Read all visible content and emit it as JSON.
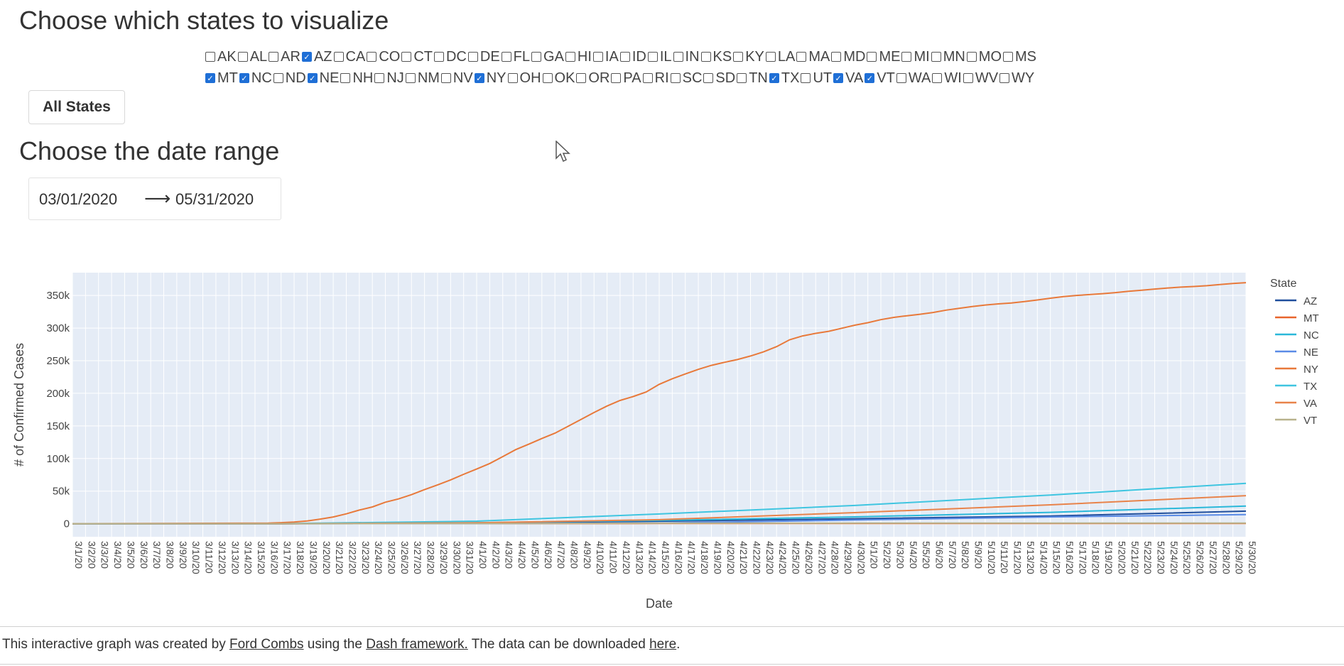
{
  "headings": {
    "states": "Choose which states to visualize",
    "dates": "Choose the date range"
  },
  "states_row1": [
    {
      "code": "AK",
      "checked": false
    },
    {
      "code": "AL",
      "checked": false
    },
    {
      "code": "AR",
      "checked": false
    },
    {
      "code": "AZ",
      "checked": true
    },
    {
      "code": "CA",
      "checked": false
    },
    {
      "code": "CO",
      "checked": false
    },
    {
      "code": "CT",
      "checked": false
    },
    {
      "code": "DC",
      "checked": false
    },
    {
      "code": "DE",
      "checked": false
    },
    {
      "code": "FL",
      "checked": false
    },
    {
      "code": "GA",
      "checked": false
    },
    {
      "code": "HI",
      "checked": false
    },
    {
      "code": "IA",
      "checked": false
    },
    {
      "code": "ID",
      "checked": false
    },
    {
      "code": "IL",
      "checked": false
    },
    {
      "code": "IN",
      "checked": false
    },
    {
      "code": "KS",
      "checked": false
    },
    {
      "code": "KY",
      "checked": false
    },
    {
      "code": "LA",
      "checked": false
    },
    {
      "code": "MA",
      "checked": false
    },
    {
      "code": "MD",
      "checked": false
    },
    {
      "code": "ME",
      "checked": false
    },
    {
      "code": "MI",
      "checked": false
    },
    {
      "code": "MN",
      "checked": false
    },
    {
      "code": "MO",
      "checked": false
    },
    {
      "code": "MS",
      "checked": false
    }
  ],
  "states_row2": [
    {
      "code": "MT",
      "checked": true
    },
    {
      "code": "NC",
      "checked": true
    },
    {
      "code": "ND",
      "checked": false
    },
    {
      "code": "NE",
      "checked": true
    },
    {
      "code": "NH",
      "checked": false
    },
    {
      "code": "NJ",
      "checked": false
    },
    {
      "code": "NM",
      "checked": false
    },
    {
      "code": "NV",
      "checked": false
    },
    {
      "code": "NY",
      "checked": true
    },
    {
      "code": "OH",
      "checked": false
    },
    {
      "code": "OK",
      "checked": false
    },
    {
      "code": "OR",
      "checked": false
    },
    {
      "code": "PA",
      "checked": false
    },
    {
      "code": "RI",
      "checked": false
    },
    {
      "code": "SC",
      "checked": false
    },
    {
      "code": "SD",
      "checked": false
    },
    {
      "code": "TN",
      "checked": false
    },
    {
      "code": "TX",
      "checked": true
    },
    {
      "code": "UT",
      "checked": false
    },
    {
      "code": "VA",
      "checked": true
    },
    {
      "code": "VT",
      "checked": true
    },
    {
      "code": "WA",
      "checked": false
    },
    {
      "code": "WI",
      "checked": false
    },
    {
      "code": "WV",
      "checked": false
    },
    {
      "code": "WY",
      "checked": false
    }
  ],
  "buttons": {
    "all_states": "All States"
  },
  "date_range": {
    "start": "03/01/2020",
    "end": "05/31/2020",
    "arrow": "⟶"
  },
  "footer": {
    "prefix": "This interactive graph was created by ",
    "author": "Ford Combs",
    "middle": " using the ",
    "framework": "Dash framework.",
    "mid2": " The data can be downloaded ",
    "link": "here",
    "suffix": "."
  },
  "colors": {
    "plot_bg": "#e5ecf6",
    "grid": "#ffffff",
    "checkbox_checked": "#1f6fd6"
  },
  "chart_data": {
    "type": "line",
    "xlabel": "Date",
    "ylabel": "# of Confirmed Cases",
    "legend_title": "State",
    "legend_position": "right",
    "grid": true,
    "x_start": "3/1/20",
    "x_end": "5/30/20",
    "x": [
      "3/1/20",
      "3/2/20",
      "3/3/20",
      "3/4/20",
      "3/5/20",
      "3/6/20",
      "3/7/20",
      "3/8/20",
      "3/9/20",
      "3/10/20",
      "3/11/20",
      "3/12/20",
      "3/13/20",
      "3/14/20",
      "3/15/20",
      "3/16/20",
      "3/17/20",
      "3/18/20",
      "3/19/20",
      "3/20/20",
      "3/21/20",
      "3/22/20",
      "3/23/20",
      "3/24/20",
      "3/25/20",
      "3/26/20",
      "3/27/20",
      "3/28/20",
      "3/29/20",
      "3/30/20",
      "3/31/20",
      "4/1/20",
      "4/2/20",
      "4/3/20",
      "4/4/20",
      "4/5/20",
      "4/6/20",
      "4/7/20",
      "4/8/20",
      "4/9/20",
      "4/10/20",
      "4/11/20",
      "4/12/20",
      "4/13/20",
      "4/14/20",
      "4/15/20",
      "4/16/20",
      "4/17/20",
      "4/18/20",
      "4/19/20",
      "4/20/20",
      "4/21/20",
      "4/22/20",
      "4/23/20",
      "4/24/20",
      "4/25/20",
      "4/26/20",
      "4/27/20",
      "4/28/20",
      "4/29/20",
      "4/30/20",
      "5/1/20",
      "5/2/20",
      "5/3/20",
      "5/4/20",
      "5/5/20",
      "5/6/20",
      "5/7/20",
      "5/8/20",
      "5/9/20",
      "5/10/20",
      "5/11/20",
      "5/12/20",
      "5/13/20",
      "5/14/20",
      "5/15/20",
      "5/16/20",
      "5/17/20",
      "5/18/20",
      "5/19/20",
      "5/20/20",
      "5/21/20",
      "5/22/20",
      "5/23/20",
      "5/24/20",
      "5/25/20",
      "5/26/20",
      "5/27/20",
      "5/28/20",
      "5/29/20",
      "5/30/20"
    ],
    "ylim": [
      -20000,
      385000
    ],
    "yticks": [
      0,
      50000,
      100000,
      150000,
      200000,
      250000,
      300000,
      350000
    ],
    "ytick_labels": [
      "0",
      "50k",
      "100k",
      "150k",
      "200k",
      "250k",
      "300k",
      "350k"
    ],
    "series": [
      {
        "name": "AZ",
        "color": "#1f4e9c",
        "start": "3/1/20",
        "values": [
          [
            0,
            1
          ],
          [
            16,
            18
          ],
          [
            31,
            1300
          ],
          [
            45,
            3800
          ],
          [
            60,
            7600
          ],
          [
            75,
            11800
          ],
          [
            90,
            19300
          ]
        ]
      },
      {
        "name": "MT",
        "color": "#e8642b",
        "start": "3/1/20",
        "values": [
          [
            0,
            0
          ],
          [
            16,
            10
          ],
          [
            31,
            220
          ],
          [
            45,
            400
          ],
          [
            60,
            450
          ],
          [
            75,
            460
          ],
          [
            90,
            490
          ]
        ]
      },
      {
        "name": "NC",
        "color": "#2ab8d9",
        "start": "3/1/20",
        "values": [
          [
            0,
            0
          ],
          [
            16,
            40
          ],
          [
            31,
            1600
          ],
          [
            45,
            5100
          ],
          [
            60,
            10500
          ],
          [
            75,
            17500
          ],
          [
            90,
            27000
          ]
        ]
      },
      {
        "name": "NE",
        "color": "#5a8be6",
        "start": "3/1/20",
        "values": [
          [
            0,
            0
          ],
          [
            16,
            20
          ],
          [
            31,
            200
          ],
          [
            45,
            1000
          ],
          [
            60,
            5700
          ],
          [
            75,
            10400
          ],
          [
            90,
            14000
          ]
        ]
      },
      {
        "name": "NY",
        "color": "#e8793a",
        "start": "3/1/20",
        "values": [
          [
            0,
            1
          ],
          [
            15,
            950
          ],
          [
            16,
            1700
          ],
          [
            17,
            2500
          ],
          [
            18,
            4200
          ],
          [
            19,
            7100
          ],
          [
            20,
            10400
          ],
          [
            21,
            15200
          ],
          [
            22,
            20900
          ],
          [
            23,
            25700
          ],
          [
            24,
            33000
          ],
          [
            25,
            38000
          ],
          [
            26,
            44600
          ],
          [
            27,
            52300
          ],
          [
            28,
            59600
          ],
          [
            29,
            67200
          ],
          [
            30,
            75800
          ],
          [
            31,
            83900
          ],
          [
            32,
            92400
          ],
          [
            33,
            102900
          ],
          [
            34,
            113700
          ],
          [
            35,
            122000
          ],
          [
            36,
            130700
          ],
          [
            37,
            138800
          ],
          [
            38,
            149300
          ],
          [
            39,
            159900
          ],
          [
            40,
            170500
          ],
          [
            41,
            180500
          ],
          [
            42,
            189000
          ],
          [
            43,
            195000
          ],
          [
            44,
            202000
          ],
          [
            45,
            213800
          ],
          [
            46,
            222300
          ],
          [
            47,
            229600
          ],
          [
            48,
            236700
          ],
          [
            49,
            242800
          ],
          [
            50,
            247500
          ],
          [
            51,
            251700
          ],
          [
            52,
            257200
          ],
          [
            53,
            263500
          ],
          [
            54,
            271600
          ],
          [
            55,
            282100
          ],
          [
            56,
            288000
          ],
          [
            57,
            291900
          ],
          [
            58,
            295100
          ],
          [
            59,
            299700
          ],
          [
            60,
            304400
          ],
          [
            61,
            308300
          ],
          [
            62,
            312900
          ],
          [
            63,
            316400
          ],
          [
            64,
            318900
          ],
          [
            65,
            321200
          ],
          [
            66,
            323900
          ],
          [
            67,
            327500
          ],
          [
            68,
            330400
          ],
          [
            69,
            333100
          ],
          [
            70,
            335400
          ],
          [
            71,
            337100
          ],
          [
            72,
            338500
          ],
          [
            73,
            340700
          ],
          [
            74,
            343100
          ],
          [
            75,
            345800
          ],
          [
            76,
            348200
          ],
          [
            77,
            350100
          ],
          [
            78,
            351400
          ],
          [
            79,
            352800
          ],
          [
            80,
            354400
          ],
          [
            81,
            356500
          ],
          [
            82,
            358100
          ],
          [
            83,
            359900
          ],
          [
            84,
            361500
          ],
          [
            85,
            362800
          ],
          [
            86,
            363800
          ],
          [
            87,
            365000
          ],
          [
            88,
            366700
          ],
          [
            89,
            368300
          ],
          [
            90,
            369600
          ]
        ]
      },
      {
        "name": "TX",
        "color": "#3fc5e0",
        "start": "3/1/20",
        "values": [
          [
            0,
            0
          ],
          [
            16,
            110
          ],
          [
            31,
            4000
          ],
          [
            45,
            15000
          ],
          [
            60,
            28000
          ],
          [
            75,
            44000
          ],
          [
            90,
            62000
          ]
        ]
      },
      {
        "name": "VA",
        "color": "#e8834a",
        "start": "3/1/20",
        "values": [
          [
            0,
            0
          ],
          [
            16,
            50
          ],
          [
            31,
            1500
          ],
          [
            45,
            6200
          ],
          [
            60,
            17000
          ],
          [
            75,
            29000
          ],
          [
            90,
            43000
          ]
        ]
      },
      {
        "name": "VT",
        "color": "#b8b28c",
        "start": "3/1/20",
        "values": [
          [
            0,
            0
          ],
          [
            16,
            10
          ],
          [
            31,
            300
          ],
          [
            45,
            750
          ],
          [
            60,
            870
          ],
          [
            75,
            940
          ],
          [
            90,
            980
          ]
        ]
      }
    ]
  }
}
